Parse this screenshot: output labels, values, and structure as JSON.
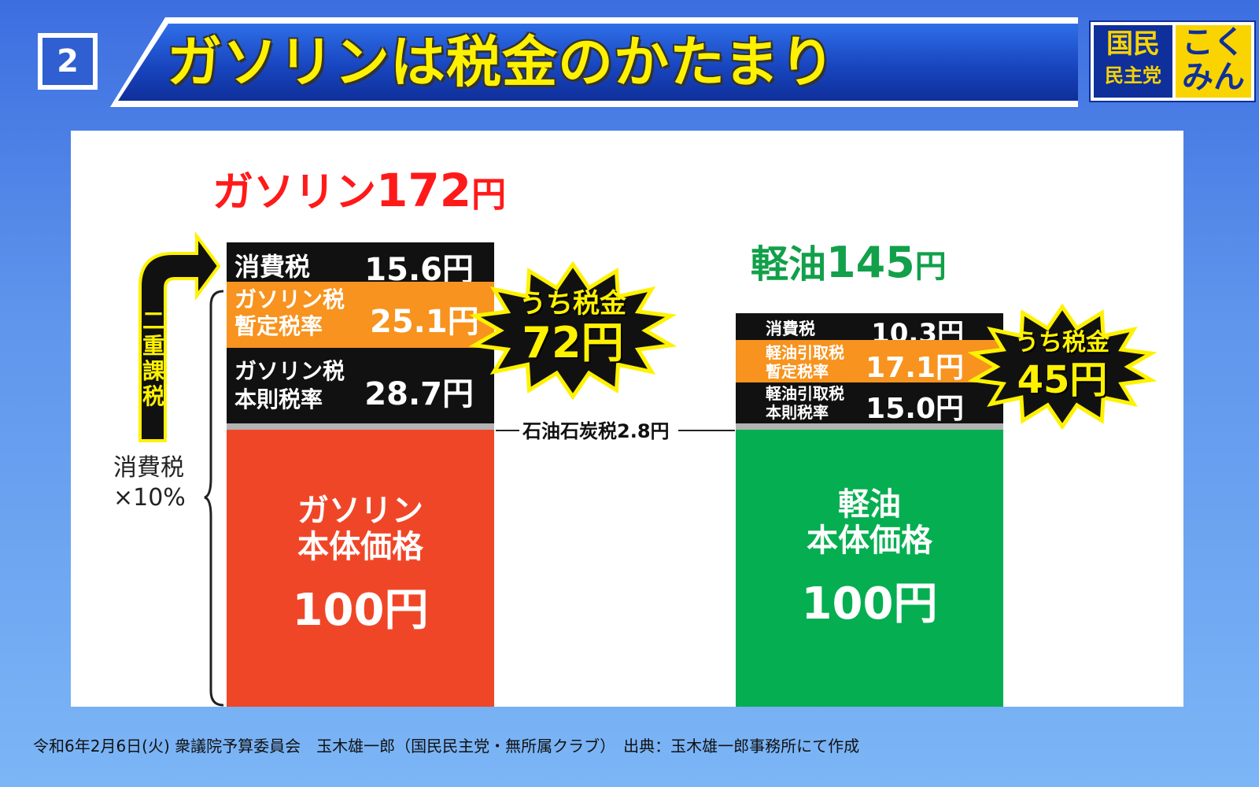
{
  "header": {
    "slide_number": "2",
    "title": "ガソリンは税金のかたまり",
    "logo": {
      "line1": "国民",
      "line2": "民主党",
      "right1": "こく",
      "right2": "みん"
    }
  },
  "colors": {
    "gasoline_title": "#ff1a1a",
    "diesel_title": "#12a04a",
    "black_segment": "#111111",
    "orange_segment": "#f7931e",
    "gasoline_base": "#f04628",
    "diesel_base": "#05ae50",
    "gray_strip": "#b3b3b3",
    "starburst": "#111111",
    "starburst_text": "#fff200"
  },
  "gasoline": {
    "title_name": "ガソリン",
    "title_number": "172",
    "title_unit": "円",
    "segments": [
      {
        "label_line1": "消費税",
        "label_line2": "",
        "value": "15.6円"
      },
      {
        "label_line1": "ガソリン税",
        "label_line2": "暫定税率",
        "value": "25.1円"
      },
      {
        "label_line1": "ガソリン税",
        "label_line2": "本則税率",
        "value": "28.7円"
      }
    ],
    "base_line1": "ガソリン",
    "base_line2": "本体価格",
    "base_value": "100円",
    "tax_badge_line1": "うち税金",
    "tax_badge_line2": "72円",
    "double_tax_label": "二重課税",
    "consumption_note_line1": "消費税",
    "consumption_note_line2": "×10%"
  },
  "diesel": {
    "title_name": "軽油",
    "title_number": "145",
    "title_unit": "円",
    "segments": [
      {
        "label_line1": "消費税",
        "label_line2": "",
        "value": "10.3円"
      },
      {
        "label_line1": "軽油引取税",
        "label_line2": "暫定税率",
        "value": "17.1円"
      },
      {
        "label_line1": "軽油引取税",
        "label_line2": "本則税率",
        "value": "15.0円"
      }
    ],
    "base_line1": "軽油",
    "base_line2": "本体価格",
    "base_value": "100円",
    "tax_badge_line1": "うち税金",
    "tax_badge_line2": "45円"
  },
  "shared_note": "石油石炭税2.8円",
  "chart_data": {
    "type": "bar",
    "stacked": true,
    "categories": [
      "ガソリン",
      "軽油"
    ],
    "series": [
      {
        "name": "本体価格",
        "values": [
          100,
          100
        ]
      },
      {
        "name": "石油石炭税",
        "values": [
          2.8,
          2.8
        ]
      },
      {
        "name": "本則税率",
        "values": [
          28.7,
          15.0
        ]
      },
      {
        "name": "暫定税率",
        "values": [
          25.1,
          17.1
        ]
      },
      {
        "name": "消費税",
        "values": [
          15.6,
          10.3
        ]
      }
    ],
    "totals": [
      172,
      145
    ],
    "tax_totals": [
      72,
      45
    ],
    "title": "ガソリンは税金のかたまり",
    "xlabel": "",
    "ylabel": ""
  },
  "footer": "令和6年2月6日(火) 衆議院予算委員会　玉木雄一郎（国民民主党・無所属クラブ）　出典：玉木雄一郎事務所にて作成"
}
